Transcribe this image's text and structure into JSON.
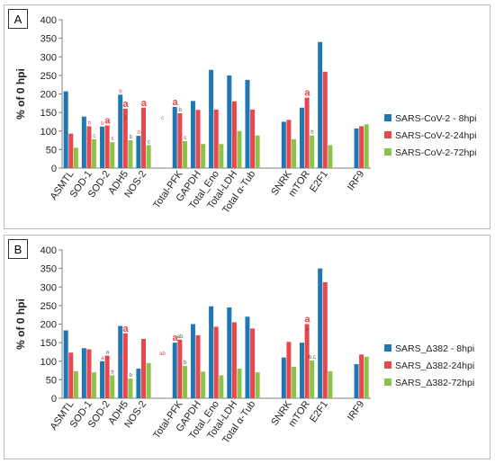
{
  "chart_data": [
    {
      "type": "bar",
      "panel_label": "A",
      "ylabel": "% of 0 hpi",
      "ylim": [
        0,
        400
      ],
      "yticks": [
        0,
        50,
        100,
        150,
        200,
        250,
        300,
        350,
        400
      ],
      "categories": [
        "ASMTL",
        "SOD-1",
        "SOD-2",
        "ADH5",
        "NOS-2",
        "",
        "Total-PFK",
        "GAPDH",
        "Total_Eno",
        "Total-LDH",
        "Total α-Tub",
        "",
        "SNRK",
        "mTOR",
        "E2F1",
        "",
        "IRF9"
      ],
      "legend_position": "right",
      "grid": false,
      "series": [
        {
          "name": "SARS-CoV-2 - 8hpi",
          "color": "#1f77b4",
          "values": [
            207,
            139,
            112,
            198,
            87,
            null,
            165,
            181,
            265,
            250,
            238,
            null,
            125,
            163,
            340,
            null,
            107
          ]
        },
        {
          "name": "SARS-CoV-2-24hpi",
          "color": "#e8474b",
          "values": [
            93,
            113,
            115,
            160,
            163,
            null,
            148,
            157,
            158,
            180,
            158,
            null,
            130,
            190,
            260,
            null,
            113
          ]
        },
        {
          "name": "SARS-CoV-2-72hpi",
          "color": "#8cc24a",
          "values": [
            55,
            78,
            70,
            75,
            62,
            null,
            73,
            65,
            65,
            100,
            88,
            null,
            78,
            88,
            62,
            null,
            118
          ]
        }
      ],
      "annotations": [
        {
          "text": "b",
          "cat": 1,
          "ser": 1,
          "color": "#e8474b",
          "size": "small"
        },
        {
          "text": "c",
          "cat": 1,
          "ser": 2,
          "color": "#e8474b",
          "size": "small"
        },
        {
          "text": "b",
          "cat": 2,
          "ser": 0,
          "color": "#e8474b",
          "size": "small"
        },
        {
          "text": "a",
          "cat": 2,
          "ser": 1,
          "color": "#e8474b",
          "size": "big"
        },
        {
          "text": "c",
          "cat": 2,
          "ser": 2,
          "color": "#555555",
          "size": "small"
        },
        {
          "text": "b",
          "cat": 3,
          "ser": 0,
          "color": "#e8474b",
          "size": "small"
        },
        {
          "text": "a",
          "cat": 3,
          "ser": 1,
          "color": "#e8474b",
          "size": "big"
        },
        {
          "text": "b",
          "cat": 3,
          "ser": 1,
          "color": "#555555",
          "size": "small",
          "dy": 14
        },
        {
          "text": "b",
          "cat": 3,
          "ser": 2,
          "color": "#555555",
          "size": "small"
        },
        {
          "text": "b",
          "cat": 4,
          "ser": 0,
          "color": "#e8474b",
          "size": "small"
        },
        {
          "text": "a",
          "cat": 4,
          "ser": 1,
          "color": "#e8474b",
          "size": "big"
        },
        {
          "text": "c",
          "cat": 4,
          "ser": 2,
          "color": "#555555",
          "size": "small"
        },
        {
          "text": "c",
          "cat": 6,
          "ser": 0,
          "color": "#e8474b",
          "size": "small",
          "dx": -14,
          "dy": 16
        },
        {
          "text": "a",
          "cat": 6,
          "ser": 0,
          "color": "#e8474b",
          "size": "big"
        },
        {
          "text": "b",
          "cat": 6,
          "ser": 1,
          "color": "#555555",
          "size": "small"
        },
        {
          "text": "c",
          "cat": 6,
          "ser": 2,
          "color": "#555555",
          "size": "small"
        },
        {
          "text": "a",
          "cat": 13,
          "ser": 1,
          "color": "#e8474b",
          "size": "big"
        },
        {
          "text": "b",
          "cat": 13,
          "ser": 2,
          "color": "#555555",
          "size": "small"
        }
      ]
    },
    {
      "type": "bar",
      "panel_label": "B",
      "ylabel": "% of 0 hpi",
      "ylim": [
        0,
        400
      ],
      "yticks": [
        0,
        50,
        100,
        150,
        200,
        250,
        300,
        350,
        400
      ],
      "categories": [
        "ASMTL",
        "SOD-1",
        "SOD-2",
        "ADH5",
        "NOS-2",
        "",
        "Total-PFK",
        "GAPDH",
        "Total_Eno",
        "Total-LDH",
        "Total α-Tub",
        "",
        "SNRK",
        "mTOR",
        "E2F1",
        "",
        "IRF9"
      ],
      "legend_position": "right",
      "grid": false,
      "series": [
        {
          "name": "SARS_Δ382 - 8hpi",
          "color": "#1f77b4",
          "values": [
            183,
            135,
            100,
            195,
            80,
            null,
            150,
            200,
            248,
            245,
            220,
            null,
            110,
            150,
            350,
            null,
            92
          ]
        },
        {
          "name": "SARS_Δ382-24hpi",
          "color": "#e8474b",
          "values": [
            123,
            132,
            115,
            175,
            160,
            null,
            158,
            170,
            193,
            205,
            188,
            null,
            152,
            200,
            313,
            null,
            118
          ]
        },
        {
          "name": "SARS_Δ382-72hpi",
          "color": "#8cc24a",
          "values": [
            73,
            70,
            62,
            53,
            95,
            null,
            87,
            72,
            62,
            80,
            70,
            null,
            85,
            102,
            73,
            null,
            112
          ]
        }
      ],
      "annotations": [
        {
          "text": "a",
          "cat": 2,
          "ser": 0,
          "color": "#e8474b",
          "size": "small"
        },
        {
          "text": "a",
          "cat": 2,
          "ser": 1,
          "color": "#555555",
          "size": "small"
        },
        {
          "text": "b",
          "cat": 2,
          "ser": 2,
          "color": "#555555",
          "size": "small"
        },
        {
          "text": "a",
          "cat": 3,
          "ser": 1,
          "color": "#e8474b",
          "size": "big"
        },
        {
          "text": "a",
          "cat": 3,
          "ser": 1,
          "color": "#e8474b",
          "size": "small",
          "dx": -6,
          "dy": 30
        },
        {
          "text": "b",
          "cat": 3,
          "ser": 2,
          "color": "#555555",
          "size": "small"
        },
        {
          "text": "ab",
          "cat": 6,
          "ser": 0,
          "color": "#e8474b",
          "size": "small",
          "dx": -14,
          "dy": 16
        },
        {
          "text": "a",
          "cat": 6,
          "ser": 0,
          "color": "#e8474b",
          "size": "big"
        },
        {
          "text": "ab",
          "cat": 6,
          "ser": 1,
          "color": "#555555",
          "size": "small"
        },
        {
          "text": "b",
          "cat": 6,
          "ser": 2,
          "color": "#555555",
          "size": "small"
        },
        {
          "text": "a",
          "cat": 13,
          "ser": 1,
          "color": "#e8474b",
          "size": "big"
        },
        {
          "text": "b",
          "cat": 13,
          "ser": 1,
          "color": "#555555",
          "size": "small",
          "dy": 10
        },
        {
          "text": "b.c",
          "cat": 13,
          "ser": 2,
          "color": "#555555",
          "size": "small"
        }
      ]
    }
  ]
}
